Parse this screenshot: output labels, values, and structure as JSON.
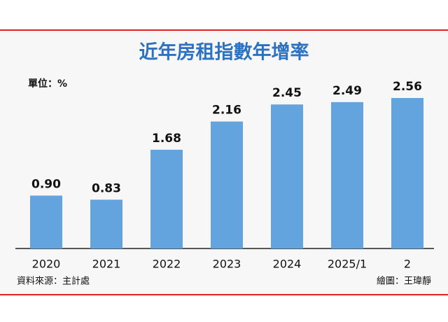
{
  "chart_data": {
    "type": "bar",
    "title": "近年房租指數年增率",
    "unit_label": "單位：%",
    "categories": [
      "2020",
      "2021",
      "2022",
      "2023",
      "2024",
      "2025/1",
      "2"
    ],
    "values": [
      0.9,
      0.83,
      1.68,
      2.16,
      2.45,
      2.49,
      2.56
    ],
    "value_labels": [
      "0.90",
      "0.83",
      "1.68",
      "2.16",
      "2.45",
      "2.49",
      "2.56"
    ],
    "color": "#63a3de",
    "source": "資料來源：主計處",
    "credit": "繪圖：王瑋靜"
  }
}
